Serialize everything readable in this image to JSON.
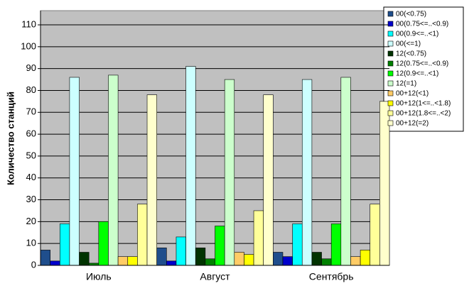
{
  "chart_data": {
    "type": "bar",
    "y_label": "Количество станций",
    "categories": [
      "Июль",
      "Август",
      "Сентябрь"
    ],
    "ylim": [
      0,
      116.5
    ],
    "yticks": [
      0,
      10,
      20,
      30,
      40,
      50,
      60,
      70,
      80,
      90,
      100,
      110
    ],
    "grid": true,
    "series": [
      {
        "name": "00(<0.75)",
        "color": "#1f4e8c",
        "values": [
          7,
          8,
          6
        ]
      },
      {
        "name": "00(0.75<=..<0.9)",
        "color": "#0000cc",
        "values": [
          2,
          2,
          4
        ]
      },
      {
        "name": "00(0.9<=..<1)",
        "color": "#00ffff",
        "values": [
          19,
          13,
          19
        ]
      },
      {
        "name": "00(<=1)",
        "color": "#ccffff",
        "values": [
          86,
          91,
          85
        ]
      },
      {
        "name": "12(<0.75)",
        "color": "#003300",
        "values": [
          6,
          8,
          6
        ]
      },
      {
        "name": "12(0.75<=..<0.9)",
        "color": "#008000",
        "values": [
          1,
          3,
          3
        ]
      },
      {
        "name": "12(0.9<=..<1)",
        "color": "#00ff00",
        "values": [
          20,
          18,
          19
        ]
      },
      {
        "name": "12(=1)",
        "color": "#ccffcc",
        "values": [
          87,
          85,
          86
        ]
      },
      {
        "name": "00+12(<1)",
        "color": "#ffcc66",
        "values": [
          4,
          6,
          4
        ]
      },
      {
        "name": "00+12(1<=..<1.8)",
        "color": "#ffff00",
        "values": [
          4,
          5,
          7
        ]
      },
      {
        "name": "00+12(1.8<=..<2)",
        "color": "#ffff99",
        "values": [
          28,
          25,
          28
        ]
      },
      {
        "name": "00+12(=2)",
        "color": "#ffffcc",
        "values": [
          78,
          78,
          75
        ]
      }
    ]
  }
}
